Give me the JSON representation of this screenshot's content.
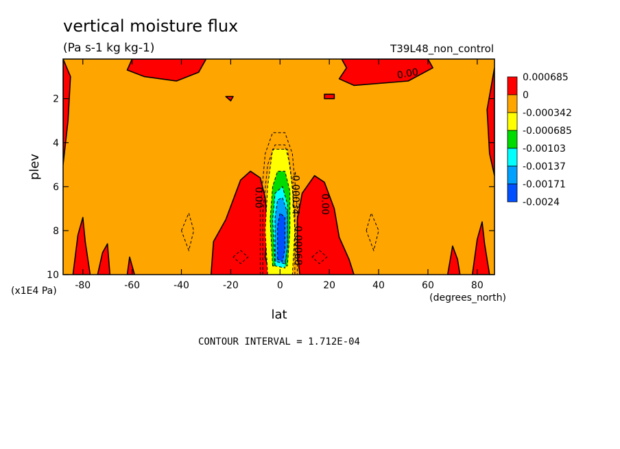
{
  "chart_data": {
    "type": "heatmap",
    "title": "vertical moisture flux",
    "subtitle": "(Pa s-1 kg kg-1)",
    "dataset_label": "T39L48_non_control",
    "xlabel": "lat",
    "ylabel": "plev",
    "x_units": "(degrees_north)",
    "y_units": "(x1E4 Pa)",
    "xlim": [
      -88,
      87
    ],
    "ylim": [
      0.2,
      10
    ],
    "x_ticks": [
      -80,
      -60,
      -40,
      -20,
      0,
      20,
      40,
      60,
      80
    ],
    "y_ticks": [
      2,
      4,
      6,
      8,
      10
    ],
    "x_tick_labels": [
      "-80",
      "-60",
      "-40",
      "-20",
      "0",
      "20",
      "40",
      "60",
      "80"
    ],
    "y_tick_labels": [
      "2",
      "4",
      "6",
      "8",
      "10"
    ],
    "contour_interval_text": "CONTOUR INTERVAL = 1.712E-04",
    "legend": {
      "placement": "right",
      "entries": [
        {
          "label": "0.000685",
          "color": "#ff0000"
        },
        {
          "label": "0",
          "color": "#ffa500"
        },
        {
          "label": "-0.000342",
          "color": "#ffff00"
        },
        {
          "label": "-0.000685",
          "color": "#00dc00"
        },
        {
          "label": "-0.00103",
          "color": "#00ffff"
        },
        {
          "label": "-0.00137",
          "color": "#00a0ff"
        },
        {
          "label": "-0.00171",
          "color": "#0050ff"
        },
        {
          "label": "-0.0024",
          "color": ""
        }
      ]
    },
    "background_color": "#ffa500",
    "contour_labels": [
      {
        "text": "0.00",
        "x": 52,
        "y": 1.0
      },
      {
        "text": "0.00",
        "x": -10,
        "y": 6.5
      },
      {
        "text": "0.00",
        "x": 17,
        "y": 6.8
      },
      {
        "text": "-0.00034",
        "x": 5,
        "y": 6.3
      },
      {
        "text": "-0.00068",
        "x": 6,
        "y": 8.6
      }
    ],
    "regions": {
      "positive_red": [
        {
          "name": "top-left",
          "poly": [
            [
              -60,
              0.2
            ],
            [
              -30,
              0.2
            ],
            [
              -33,
              0.8
            ],
            [
              -42,
              1.2
            ],
            [
              -55,
              1.0
            ],
            [
              -62,
              0.7
            ]
          ]
        },
        {
          "name": "top-right",
          "poly": [
            [
              25,
              0.2
            ],
            [
              60,
              0.2
            ],
            [
              62,
              0.6
            ],
            [
              52,
              1.2
            ],
            [
              30,
              1.4
            ],
            [
              24,
              1.1
            ],
            [
              27,
              0.6
            ]
          ]
        },
        {
          "name": "mid-left",
          "poly": [
            [
              -28,
              10
            ],
            [
              -27,
              8.5
            ],
            [
              -22,
              7.5
            ],
            [
              -16,
              5.7
            ],
            [
              -12,
              5.3
            ],
            [
              -8,
              5.6
            ],
            [
              -6,
              6.5
            ],
            [
              -5,
              8.0
            ],
            [
              -6,
              9.2
            ],
            [
              -4,
              10
            ]
          ]
        },
        {
          "name": "mid-right",
          "poly": [
            [
              8,
              10
            ],
            [
              7,
              9.0
            ],
            [
              7,
              7.5
            ],
            [
              9,
              6.3
            ],
            [
              14,
              5.5
            ],
            [
              18,
              5.8
            ],
            [
              22,
              7.0
            ],
            [
              24,
              8.3
            ],
            [
              28,
              9.3
            ],
            [
              30,
              10
            ]
          ]
        },
        {
          "name": "left-edge",
          "poly": [
            [
              -88,
              0.2
            ],
            [
              -85,
              1.0
            ],
            [
              -86,
              3.0
            ],
            [
              -88,
              5.0
            ]
          ]
        },
        {
          "name": "right-edge",
          "poly": [
            [
              87,
              0.6
            ],
            [
              84,
              2.5
            ],
            [
              85,
              4.5
            ],
            [
              87,
              5.5
            ]
          ]
        },
        {
          "name": "bottom-left-spike-1",
          "poly": [
            [
              -84,
              10
            ],
            [
              -82,
              8.2
            ],
            [
              -80,
              7.4
            ],
            [
              -79,
              8.5
            ],
            [
              -77,
              10
            ]
          ]
        },
        {
          "name": "bottom-left-spike-2",
          "poly": [
            [
              -74,
              10
            ],
            [
              -72,
              9.0
            ],
            [
              -70,
              8.6
            ],
            [
              -69,
              10
            ]
          ]
        },
        {
          "name": "bottom-left-spike-3",
          "poly": [
            [
              -62,
              10
            ],
            [
              -61,
              9.2
            ],
            [
              -59,
              10
            ]
          ]
        },
        {
          "name": "bottom-right-spike-1",
          "poly": [
            [
              68,
              10
            ],
            [
              70,
              8.7
            ],
            [
              72,
              9.3
            ],
            [
              73,
              10
            ]
          ]
        },
        {
          "name": "bottom-right-spike-2",
          "poly": [
            [
              78,
              10
            ],
            [
              80,
              8.4
            ],
            [
              82,
              7.6
            ],
            [
              83,
              8.6
            ],
            [
              85,
              10
            ]
          ]
        },
        {
          "name": "upper-small-left",
          "poly": [
            [
              -22,
              1.9
            ],
            [
              -19,
              1.9
            ],
            [
              -20,
              2.1
            ]
          ]
        },
        {
          "name": "upper-small-right",
          "poly": [
            [
              18,
              1.8
            ],
            [
              22,
              1.8
            ],
            [
              22,
              2.0
            ],
            [
              18,
              2.0
            ]
          ]
        }
      ],
      "negative_core": [
        {
          "level": "-0.000342",
          "color": "#ffff00",
          "poly": [
            [
              -5,
              10
            ],
            [
              -6,
              8.0
            ],
            [
              -5,
              6.0
            ],
            [
              -3,
              4.3
            ],
            [
              3,
              4.3
            ],
            [
              5,
              6.0
            ],
            [
              6,
              8.0
            ],
            [
              5,
              10
            ]
          ]
        },
        {
          "level": "-0.000685",
          "color": "#00dc00",
          "poly": [
            [
              -3,
              9.6
            ],
            [
              -4,
              7.5
            ],
            [
              -3,
              6.0
            ],
            [
              -1,
              5.3
            ],
            [
              2,
              5.3
            ],
            [
              4,
              6.2
            ],
            [
              4,
              8.0
            ],
            [
              3,
              9.6
            ]
          ]
        },
        {
          "level": "-0.00103",
          "color": "#00ffff",
          "poly": [
            [
              -2,
              9.6
            ],
            [
              -3,
              7.5
            ],
            [
              -2,
              6.3
            ],
            [
              1,
              6.0
            ],
            [
              3,
              6.8
            ],
            [
              3,
              8.5
            ],
            [
              2,
              9.7
            ]
          ]
        },
        {
          "level": "-0.00137",
          "color": "#00a0ff",
          "poly": [
            [
              -2,
              9.4
            ],
            [
              -2,
              7.4
            ],
            [
              -1,
              6.6
            ],
            [
              1,
              6.5
            ],
            [
              3,
              7.2
            ],
            [
              3,
              8.8
            ],
            [
              2,
              9.5
            ]
          ]
        },
        {
          "level": "-0.00171",
          "color": "#0050ff",
          "poly": [
            [
              -1,
              9.3
            ],
            [
              -1,
              7.8
            ],
            [
              0,
              7.2
            ],
            [
              2,
              7.4
            ],
            [
              2,
              8.8
            ],
            [
              1,
              9.4
            ]
          ]
        }
      ]
    }
  }
}
